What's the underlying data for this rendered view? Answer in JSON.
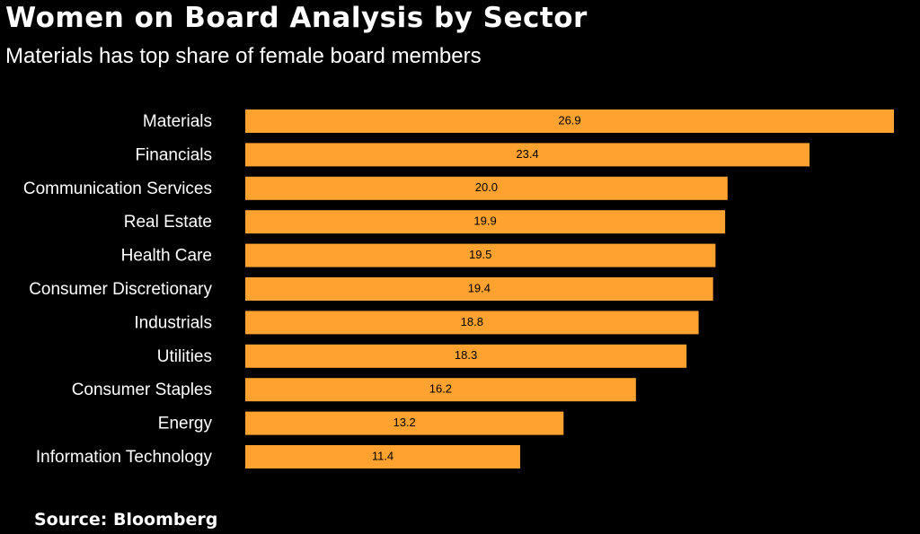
{
  "header": {
    "title": "Women on Board Analysis by Sector",
    "subtitle": "Materials has top share of female board members"
  },
  "footer": {
    "source": "Source: Bloomberg"
  },
  "colors": {
    "background": "#000000",
    "bar": "#FFA230",
    "label": "#ffffff",
    "value_label": "#000000"
  },
  "chart_data": {
    "type": "bar",
    "orientation": "horizontal",
    "title": "Women on Board Analysis by Sector",
    "subtitle": "Materials has top share of female board members",
    "xlabel": "",
    "ylabel": "",
    "categories": [
      "Materials",
      "Financials",
      "Communication Services",
      "Real Estate",
      "Health Care",
      "Consumer Discretionary",
      "Industrials",
      "Utilities",
      "Consumer Staples",
      "Energy",
      "Information Technology"
    ],
    "values": [
      26.9,
      23.4,
      20.0,
      19.9,
      19.5,
      19.4,
      18.8,
      18.3,
      16.2,
      13.2,
      11.4
    ],
    "value_labels": [
      "26.9",
      "23.4",
      "20.0",
      "19.9",
      "19.5",
      "19.4",
      "18.8",
      "18.3",
      "16.2",
      "13.2",
      "11.4"
    ],
    "xlim": [
      0,
      26.9
    ],
    "grid": false,
    "legend": "none"
  }
}
